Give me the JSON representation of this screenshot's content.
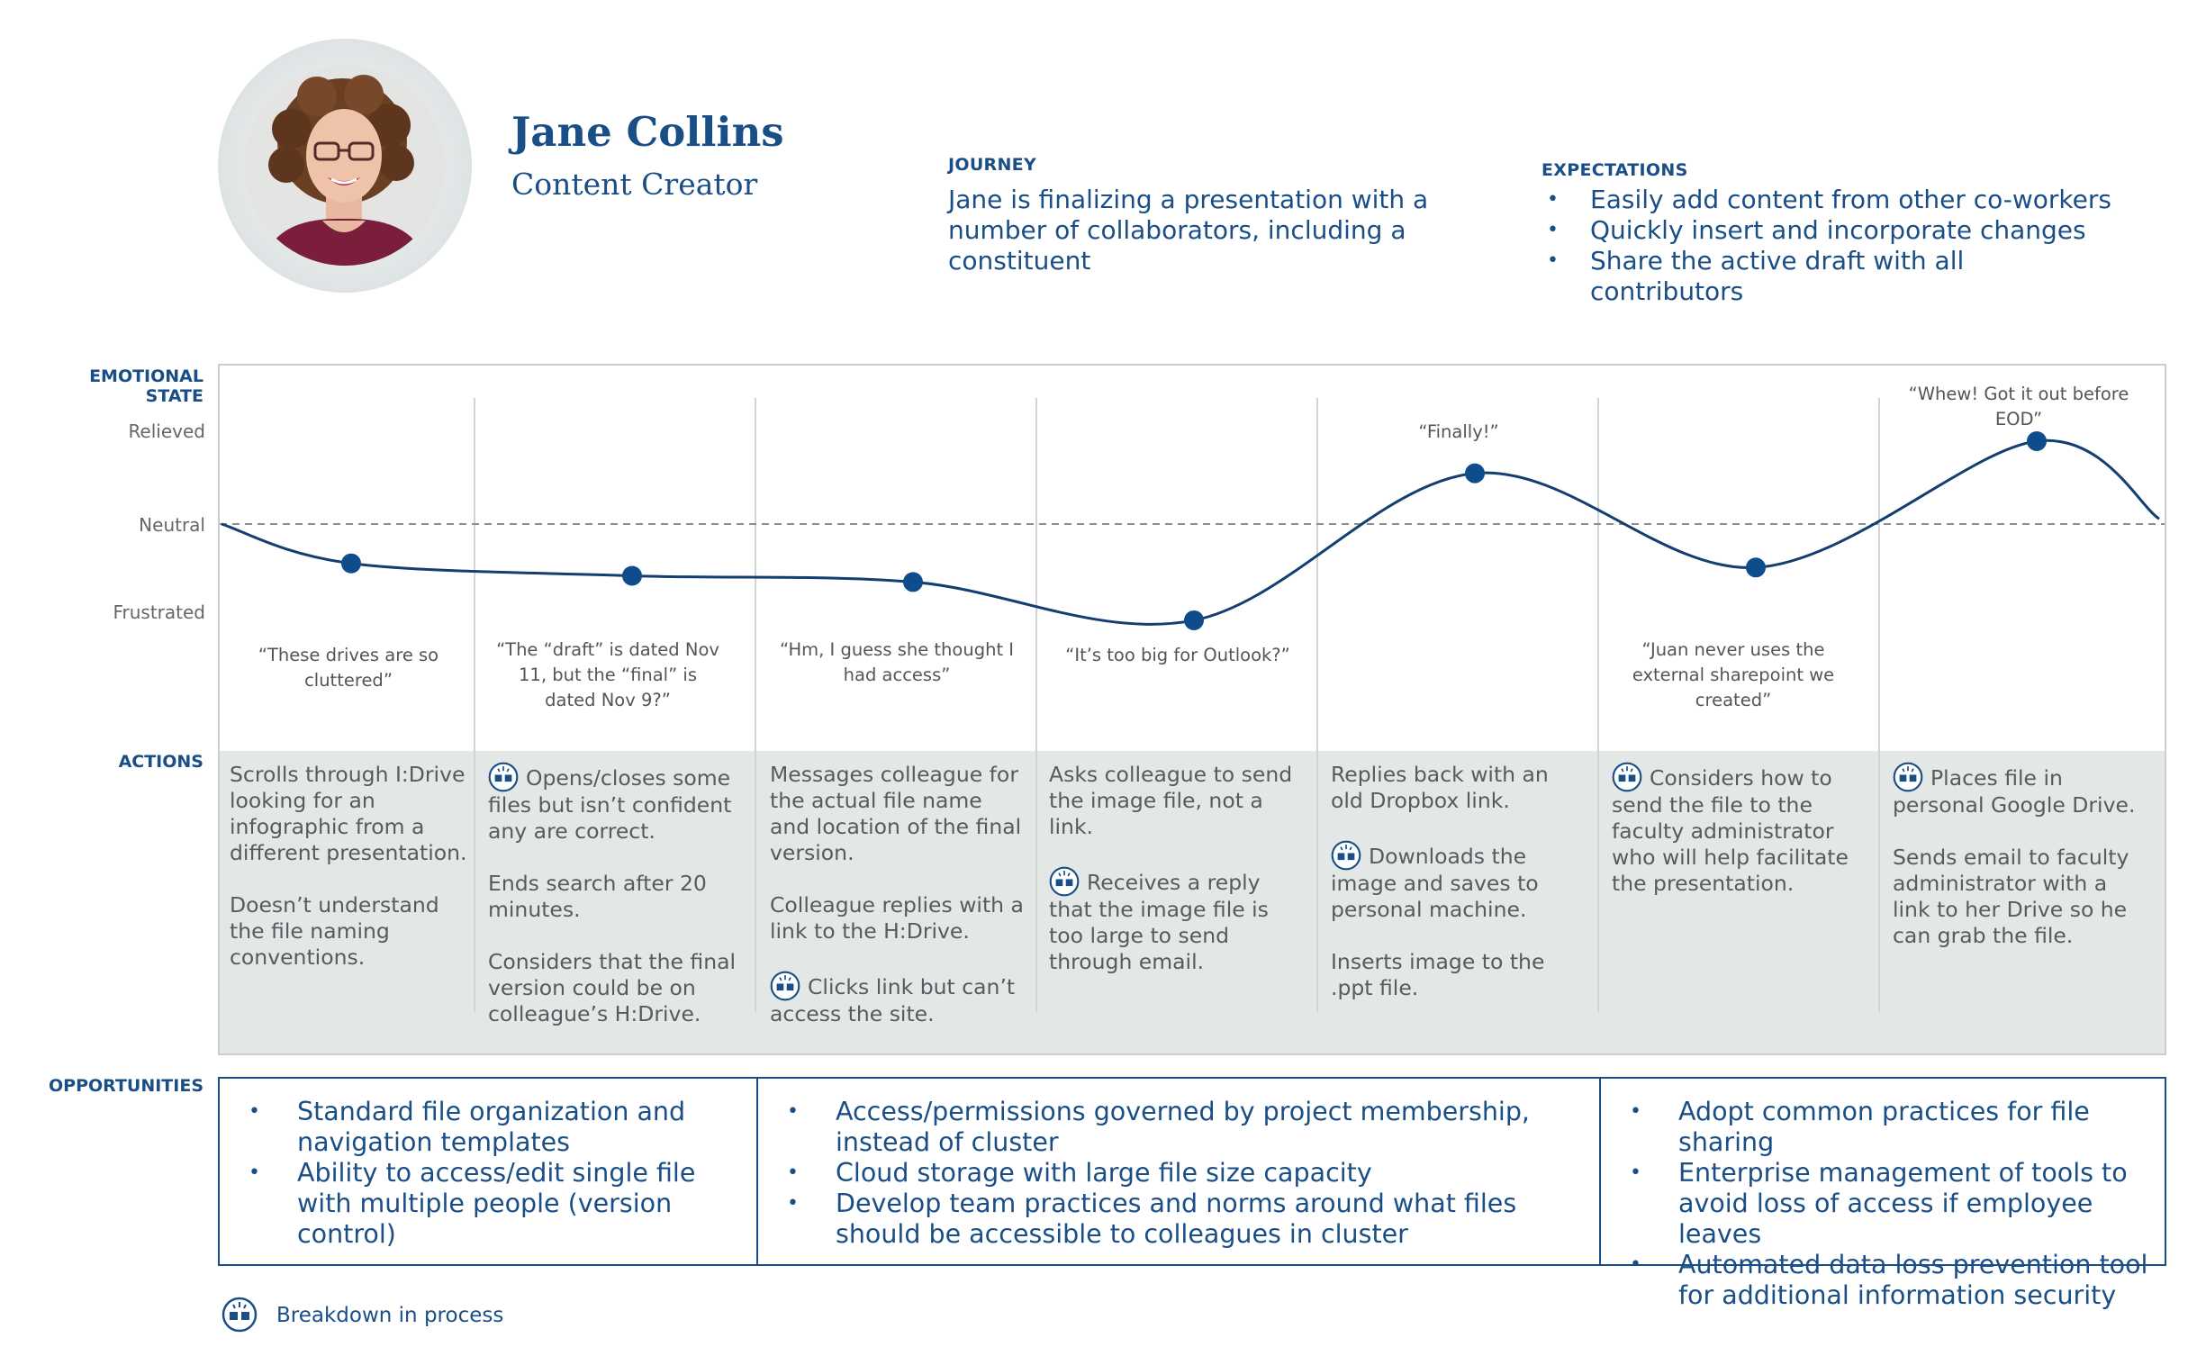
{
  "persona": {
    "name": "Jane Collins",
    "role": "Content Creator"
  },
  "journey": {
    "label": "JOURNEY",
    "text": "Jane is finalizing a presentation with a number of collaborators, including a constituent"
  },
  "expectations": {
    "label": "EXPECTATIONS",
    "items": [
      "Easily add content from other co-workers",
      "Quickly insert and incorporate changes",
      "Share the active draft with all contributors"
    ]
  },
  "rows": {
    "emotional_state": "EMOTIONAL STATE",
    "actions": "ACTIONS",
    "opportunities": "OPPORTUNITIES"
  },
  "axis": {
    "relieved": "Relieved",
    "neutral": "Neutral",
    "frustrated": "Frustrated"
  },
  "chart_data": {
    "type": "line",
    "title": "Emotional State",
    "ylabel": "Emotional State",
    "y_categories": [
      "Frustrated",
      "Neutral",
      "Relieved"
    ],
    "ylim": [
      -1,
      1
    ],
    "x": [
      1,
      2,
      3,
      4,
      5,
      6,
      7
    ],
    "values": [
      -0.38,
      -0.5,
      -0.56,
      -0.93,
      0.49,
      -0.42,
      0.8
    ],
    "quotes": [
      "“These drives are so cluttered”",
      "“The “draft” is dated Nov 11, but the “final” is dated Nov 9?”",
      "“Hm, I guess she thought I had access”",
      "“It’s too big for Outlook?”",
      "“Finally!”",
      "“Juan never uses the external sharepoint we created”",
      "“Whew! Got it out before EOD”"
    ]
  },
  "actions": [
    {
      "paragraphs": [
        {
          "breakdown": false,
          "text": "Scrolls through I:Drive looking for an infographic from a different presentation."
        },
        {
          "breakdown": false,
          "text": "Doesn’t understand the file naming conventions."
        }
      ]
    },
    {
      "paragraphs": [
        {
          "breakdown": true,
          "text": "Opens/closes some files but isn’t confident any are correct."
        },
        {
          "breakdown": false,
          "text": "Ends search after 20 minutes."
        },
        {
          "breakdown": false,
          "text": "Considers that the final version could be on colleague’s H:Drive."
        }
      ]
    },
    {
      "paragraphs": [
        {
          "breakdown": false,
          "text": "Messages colleague for the actual file name and location of the final version."
        },
        {
          "breakdown": false,
          "text": "Colleague replies with a link to the H:Drive."
        },
        {
          "breakdown": true,
          "text": "Clicks link but can’t access the site."
        }
      ]
    },
    {
      "paragraphs": [
        {
          "breakdown": false,
          "text": "Asks colleague to send the image file, not a link."
        },
        {
          "breakdown": true,
          "text": "Receives a reply that the image file is too large to send through email."
        }
      ]
    },
    {
      "paragraphs": [
        {
          "breakdown": false,
          "text": "Replies back with an old Dropbox link."
        },
        {
          "breakdown": true,
          "text": "Downloads the image and saves to personal machine."
        },
        {
          "breakdown": false,
          "text": "Inserts image to the .ppt file."
        }
      ]
    },
    {
      "paragraphs": [
        {
          "breakdown": true,
          "text": "Considers how to send the file to the faculty administrator who will help facilitate the presentation."
        }
      ]
    },
    {
      "paragraphs": [
        {
          "breakdown": true,
          "text": "Places file in personal Google Drive."
        },
        {
          "breakdown": false,
          "text": "Sends email to faculty administrator with a link to her Drive so he can grab the file."
        }
      ]
    }
  ],
  "opportunities": [
    [
      "Standard file organization and navigation templates",
      "Ability to access/edit single file with multiple people (version control)"
    ],
    [
      "Access/permissions governed by project membership, instead of cluster",
      "Cloud storage with large file size capacity",
      "Develop team practices and norms around what files should be accessible to colleagues in cluster"
    ],
    [
      "Adopt common practices for file sharing",
      "Enterprise management of tools to avoid loss of access if employee leaves",
      "Automated data loss prevention tool for additional information security"
    ]
  ],
  "legend": {
    "label": "Breakdown in process",
    "icon": "breakdown-icon"
  },
  "colors": {
    "navy": "#1a4e86",
    "grey_panel": "#e3e7e6",
    "marker": "#0f4c8c"
  }
}
